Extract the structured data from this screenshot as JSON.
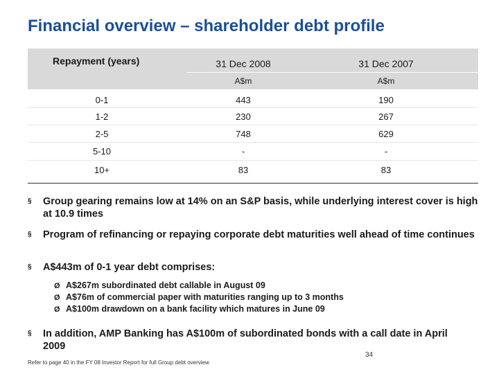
{
  "title": "Financial overview – shareholder debt profile",
  "table": {
    "row_header": "Repayment (years)",
    "columns": [
      "31 Dec 2008",
      "31 Dec 2007"
    ],
    "units": [
      "A$m",
      "A$m"
    ],
    "rows": [
      {
        "label": "0-1",
        "v2008": "443",
        "v2007": "190"
      },
      {
        "label": "1-2",
        "v2008": "230",
        "v2007": "267"
      },
      {
        "label": "2-5",
        "v2008": "748",
        "v2007": "629"
      },
      {
        "label": "5-10",
        "v2008": "-",
        "v2007": "-"
      },
      {
        "label": "10+",
        "v2008": "83",
        "v2007": "83"
      }
    ]
  },
  "bullets": [
    "Group gearing remains low at 14% on an S&P basis, while underlying interest cover is high at 10.9 times",
    "Program of refinancing or repaying corporate debt maturities well ahead of time continues",
    "A$443m of 0-1 year debt comprises:",
    "In addition, AMP Banking has A$100m of subordinated bonds with a call date in April 2009"
  ],
  "bullet_marker": "§",
  "sub_marker": "Ø",
  "sub_bullets": [
    "A$267m subordinated debt callable in August 09",
    "A$76m of commercial paper with maturities ranging up to 3 months",
    "A$100m drawdown on a bank facility which matures in June 09"
  ],
  "footnote": "Refer to page 40 in the FY 08 Investor Report for full Group debt overview",
  "page_number": "34"
}
